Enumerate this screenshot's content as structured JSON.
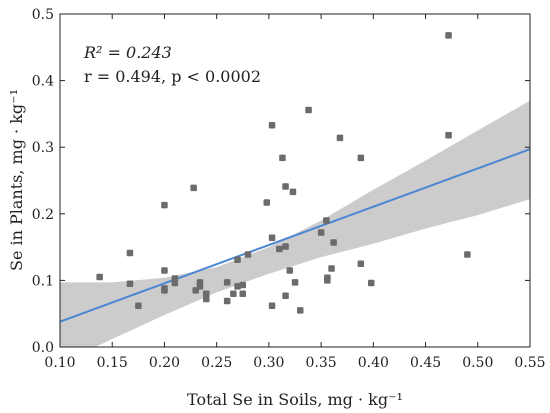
{
  "chart_data": {
    "type": "scatter",
    "xlabel": "Total Se in Soils, mg · kg⁻¹",
    "ylabel": "Se in Plants, mg · kg⁻¹",
    "xlim": [
      0.1,
      0.55
    ],
    "ylim": [
      0.0,
      0.5
    ],
    "xticks": [
      "0.10",
      "0.15",
      "0.20",
      "0.25",
      "0.30",
      "0.35",
      "0.40",
      "0.45",
      "0.50",
      "0.55"
    ],
    "yticks": [
      "0.0",
      "0.1",
      "0.2",
      "0.3",
      "0.4",
      "0.5"
    ],
    "grid": false,
    "stats": {
      "r2_label": "R² = 0.243",
      "r_label": "r = 0.494, p < 0.0002"
    },
    "regression": {
      "x": [
        0.1,
        0.55
      ],
      "y": [
        0.038,
        0.297
      ]
    },
    "confidence_band": {
      "x": [
        0.1,
        0.15,
        0.2,
        0.25,
        0.3,
        0.35,
        0.4,
        0.45,
        0.5,
        0.55
      ],
      "upper": [
        0.097,
        0.097,
        0.104,
        0.12,
        0.15,
        0.19,
        0.236,
        0.28,
        0.325,
        0.37
      ],
      "lower": [
        -0.025,
        0.012,
        0.048,
        0.082,
        0.11,
        0.135,
        0.155,
        0.178,
        0.198,
        0.222
      ]
    },
    "points": [
      [
        0.138,
        0.105
      ],
      [
        0.167,
        0.141
      ],
      [
        0.167,
        0.095
      ],
      [
        0.175,
        0.062
      ],
      [
        0.2,
        0.213
      ],
      [
        0.2,
        0.115
      ],
      [
        0.2,
        0.085
      ],
      [
        0.2,
        0.088
      ],
      [
        0.21,
        0.103
      ],
      [
        0.21,
        0.096
      ],
      [
        0.228,
        0.239
      ],
      [
        0.23,
        0.085
      ],
      [
        0.234,
        0.097
      ],
      [
        0.234,
        0.091
      ],
      [
        0.24,
        0.08
      ],
      [
        0.24,
        0.072
      ],
      [
        0.26,
        0.069
      ],
      [
        0.26,
        0.097
      ],
      [
        0.266,
        0.08
      ],
      [
        0.27,
        0.131
      ],
      [
        0.27,
        0.091
      ],
      [
        0.275,
        0.08
      ],
      [
        0.275,
        0.093
      ],
      [
        0.28,
        0.139
      ],
      [
        0.298,
        0.217
      ],
      [
        0.303,
        0.333
      ],
      [
        0.303,
        0.164
      ],
      [
        0.303,
        0.062
      ],
      [
        0.31,
        0.147
      ],
      [
        0.313,
        0.284
      ],
      [
        0.316,
        0.241
      ],
      [
        0.316,
        0.151
      ],
      [
        0.316,
        0.077
      ],
      [
        0.32,
        0.115
      ],
      [
        0.323,
        0.233
      ],
      [
        0.325,
        0.097
      ],
      [
        0.33,
        0.055
      ],
      [
        0.338,
        0.356
      ],
      [
        0.35,
        0.172
      ],
      [
        0.355,
        0.19
      ],
      [
        0.356,
        0.104
      ],
      [
        0.356,
        0.1
      ],
      [
        0.36,
        0.118
      ],
      [
        0.362,
        0.157
      ],
      [
        0.368,
        0.314
      ],
      [
        0.388,
        0.284
      ],
      [
        0.388,
        0.125
      ],
      [
        0.398,
        0.096
      ],
      [
        0.472,
        0.468
      ],
      [
        0.472,
        0.318
      ],
      [
        0.49,
        0.139
      ]
    ],
    "colors": {
      "points": "#6b6b6b",
      "line": "#4a86d2",
      "band": "#cccccc"
    }
  }
}
